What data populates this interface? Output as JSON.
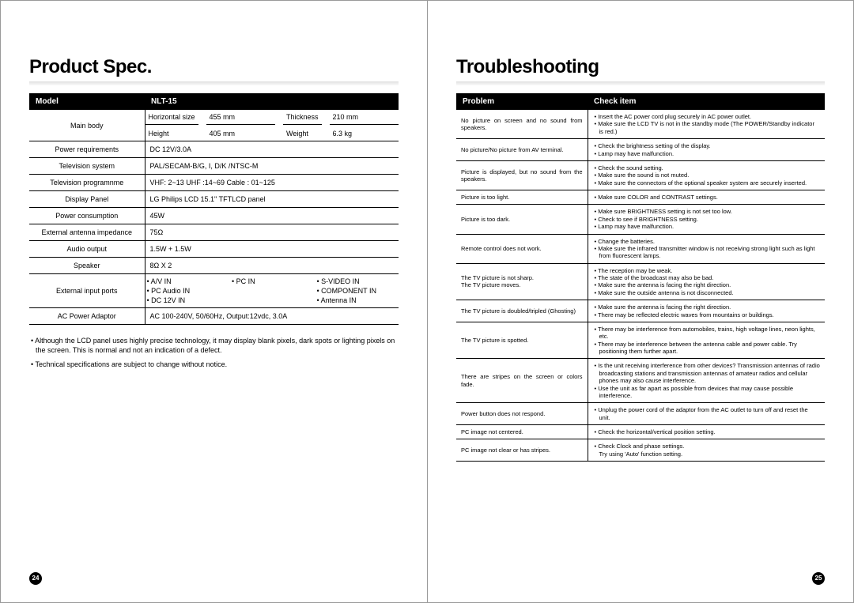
{
  "left": {
    "title": "Product Spec.",
    "header_model": "Model",
    "header_value": "NLT-15",
    "rows": [
      {
        "label": "Main body",
        "type": "mainbody",
        "cells": [
          "Horizontal size",
          "455 mm",
          "Thickness",
          "210 mm",
          "Height",
          "405 mm",
          "Weight",
          "6.3 kg"
        ]
      },
      {
        "label": "Power requirements",
        "value": "DC 12V/3.0A"
      },
      {
        "label": "Television system",
        "value": "PAL/SECAM-B/G, I, D/K /NTSC-M"
      },
      {
        "label": "Television programnme",
        "value": "VHF: 2~13 UHF :14~69 Cable : 01~125"
      },
      {
        "label": "Display Panel",
        "value": "LG Philips LCD 15.1\" TFTLCD panel"
      },
      {
        "label": "Power consumption",
        "value": "45W"
      },
      {
        "label": "External antenna impedance",
        "value": "75Ω"
      },
      {
        "label": "Audio output",
        "value": "1.5W + 1.5W"
      },
      {
        "label": "Speaker",
        "value": "8Ω X 2"
      },
      {
        "label": "External input ports",
        "type": "ports",
        "cells": [
          "• A/V IN",
          "• PC IN",
          "• S-VIDEO IN",
          "• PC Audio IN",
          "",
          "• COMPONENT IN",
          "• DC 12V IN",
          "",
          "• Antenna IN"
        ]
      },
      {
        "label": "AC Power Adaptor",
        "value": "AC 100-240V, 50/60Hz, Output:12vdc, 3.0A"
      }
    ],
    "notes": [
      "• Although the LCD panel uses highly precise technology, it may display blank pixels, dark spots or lighting pixels on the screen. This is normal and not an indication of a defect.",
      "• Technical specifications are subject to change without notice."
    ],
    "page_num": "24"
  },
  "right": {
    "title": "Troubleshooting",
    "header_problem": "Problem",
    "header_check": "Check item",
    "rows": [
      {
        "problem": "No picture on screen and no sound from speakers.",
        "checks": [
          "Insert the AC power cord plug securely in AC power outlet.",
          "Make sure the LCD TV is not in the standby mode (The POWER/Standby indicator is red.)"
        ]
      },
      {
        "problem": "No picture/No picture from AV terminal.",
        "checks": [
          "Check the brightness setting of the display.",
          "Lamp may have malfunction."
        ]
      },
      {
        "problem": "Picture is displayed, but no sound from the speakers.",
        "checks": [
          "Check the sound setting.",
          "Make sure the sound is not muted.",
          "Make sure the connectors of the optional speaker system are securely inserted."
        ]
      },
      {
        "problem": "Picture is too light.",
        "checks": [
          "Make sure COLOR and CONTRAST settings."
        ]
      },
      {
        "problem": "Picture is too dark.",
        "checks": [
          "Make sure BRIGHTNESS setting is not set too low.",
          "Check to see if BRIGHTNESS setting.",
          "Lamp may have malfunction."
        ]
      },
      {
        "problem": "Remote control does not work.",
        "checks": [
          "Change the batteries.",
          "Make sure the infrared transmitter window is not receiving strong light such as light from fluorescent lamps."
        ]
      },
      {
        "problem": "The TV picture is not sharp.\nThe TV picture moves.",
        "checks": [
          "The reception may be weak.",
          "The state of the broadcast may also be bad.",
          "Make sure the antenna is facing the right direction.",
          "Make sure the outside antenna is not disconnected."
        ]
      },
      {
        "problem": "The TV picture is doubled/tripled (Ghosting)",
        "checks": [
          "Make sure the antenna is facing the right direction.",
          "There may be reflected electric waves from mountains or buildings."
        ]
      },
      {
        "problem": "The TV picture is spotted.",
        "checks": [
          "There may be interference from automobiles, trains, high voltage lines, neon lights, etc.",
          "There may be interference between the antenna cable and power cable. Try positioning them further apart."
        ]
      },
      {
        "problem": "There are stripes on the screen or colors fade.",
        "checks": [
          "Is the unit receiving interference from other devices? Transmission antennas of radio broadcasting stations and transmission antennas of amateur radios and cellular phones may also cause interference.",
          "Use the unit as far apart as possible from devices that may cause possible interference."
        ]
      },
      {
        "problem": "Power button does not respond.",
        "checks": [
          "Unplug the power cord of the adaptor from the AC outlet to turn off and reset the unit."
        ]
      },
      {
        "problem": "PC image not centered.",
        "checks": [
          "Check the horizontal/vertical position setting."
        ]
      },
      {
        "problem": "PC image not clear or has stripes.",
        "checks": [
          "Check Clock and phase settings.\nTry using 'Auto' function setting."
        ]
      }
    ],
    "page_num": "25"
  },
  "styling": {
    "colors": {
      "header_bg": "#000000",
      "header_fg": "#ffffff",
      "border": "#000000",
      "page_border": "#999999",
      "bg": "#ffffff"
    },
    "fonts": {
      "title_size_pt": 24,
      "table_size_pt": 9,
      "trouble_size_pt": 7.5
    }
  }
}
